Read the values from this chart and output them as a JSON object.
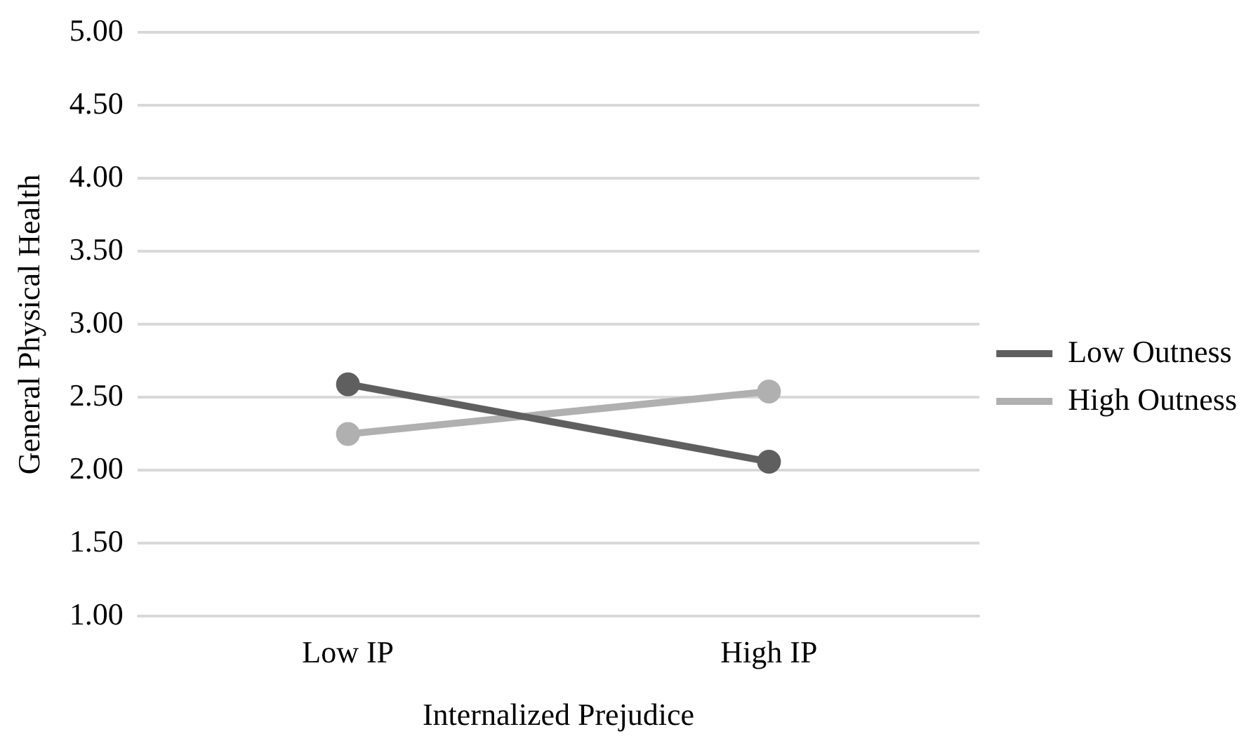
{
  "chart_data": {
    "type": "line",
    "xlabel": "Internalized Prejudice",
    "ylabel": "General Physical Health",
    "categories": [
      "Low IP",
      "High IP"
    ],
    "series": [
      {
        "name": "Low Outness",
        "color": "#5f5f5f",
        "values": [
          2.59,
          2.06
        ]
      },
      {
        "name": "High Outness",
        "color": "#b0b0b0",
        "values": [
          2.25,
          2.54
        ]
      }
    ],
    "ylim": [
      1,
      5
    ],
    "yticks": [
      {
        "value": 1,
        "label": "1.00"
      },
      {
        "value": 1.5,
        "label": "1.50"
      },
      {
        "value": 2,
        "label": "2.00"
      },
      {
        "value": 2.5,
        "label": "2.50"
      },
      {
        "value": 3,
        "label": "3.00"
      },
      {
        "value": 3.5,
        "label": "3.50"
      },
      {
        "value": 4,
        "label": "4.00"
      },
      {
        "value": 4.5,
        "label": "4.50"
      },
      {
        "value": 5,
        "label": "5.00"
      }
    ],
    "grid": "y",
    "legend": "right",
    "marker": "circle",
    "line_style": "solid"
  }
}
